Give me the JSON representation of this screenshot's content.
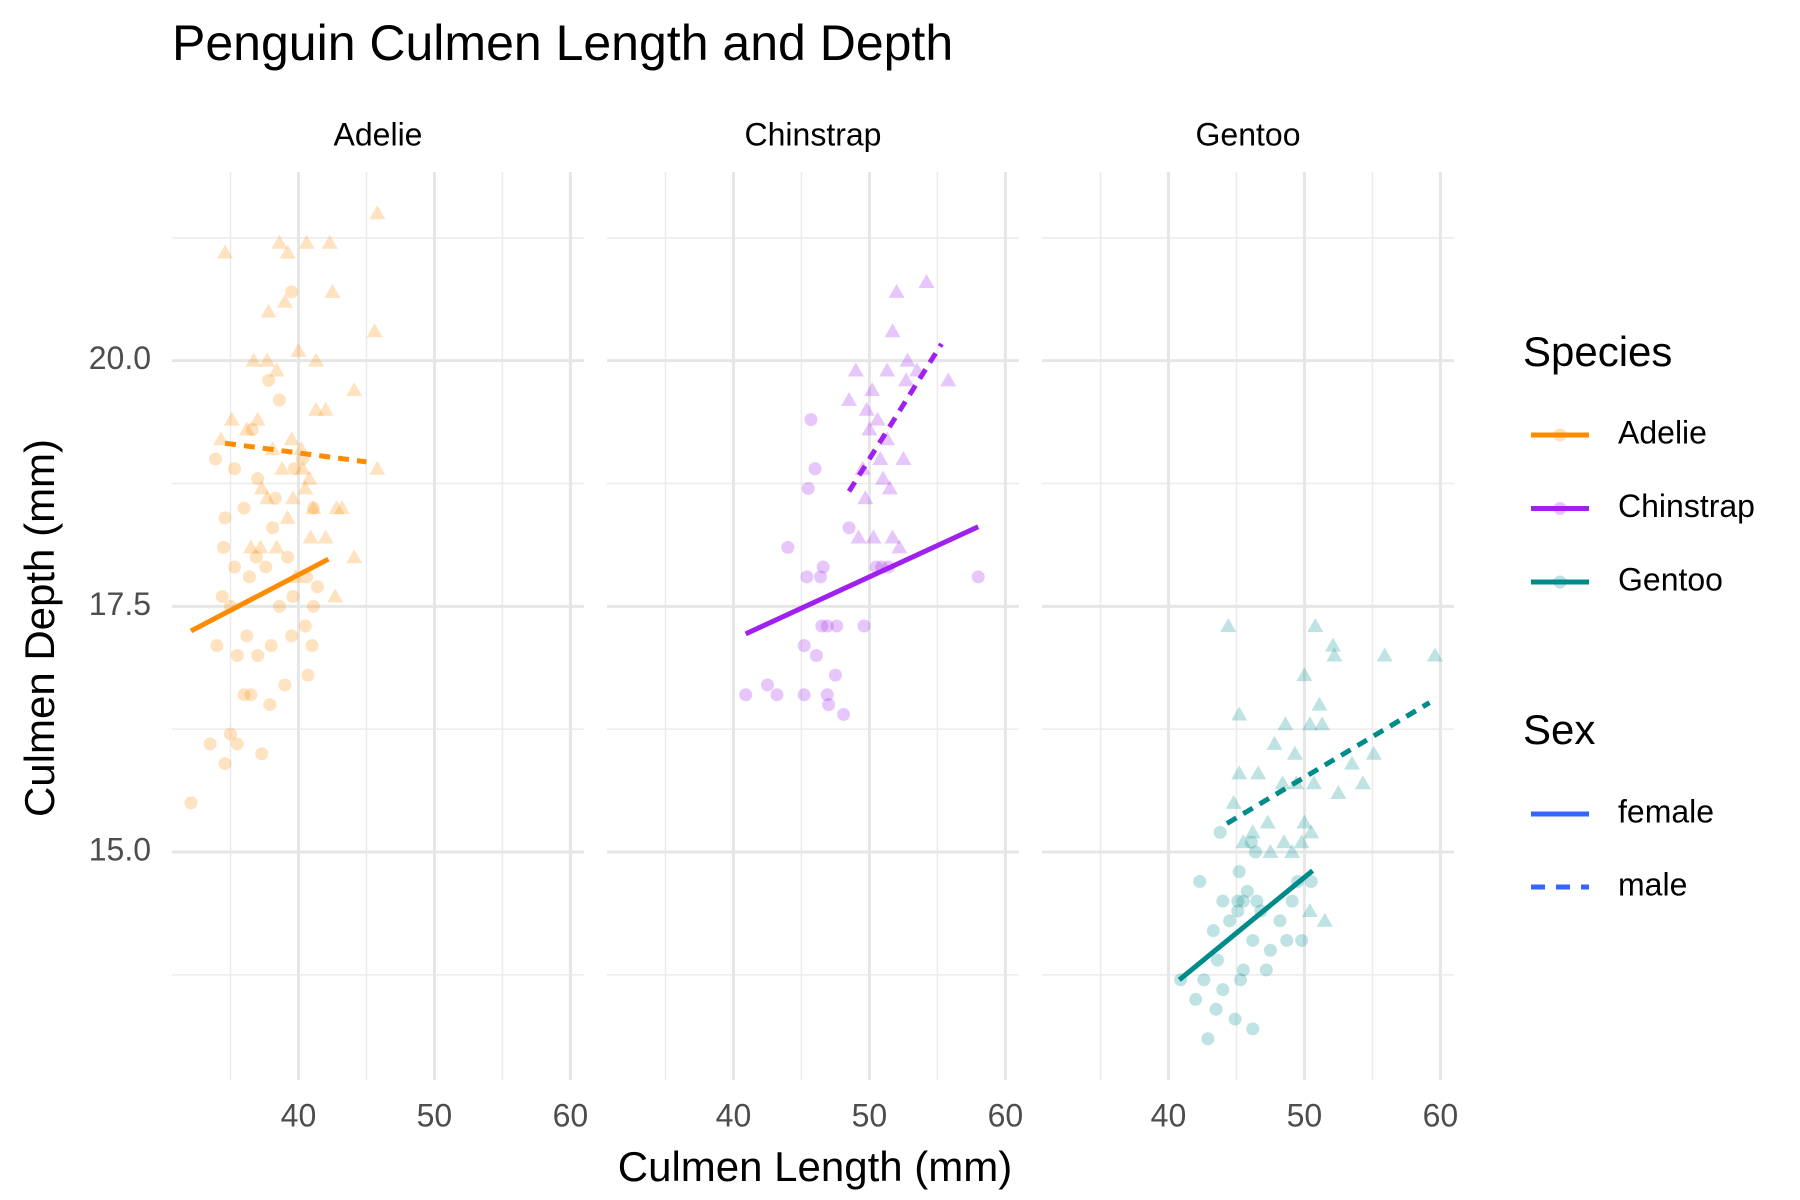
{
  "chart_data": {
    "type": "scatter",
    "title": "Penguin Culmen Length and Depth",
    "xlabel": "Culmen Length (mm)",
    "ylabel": "Culmen Depth (mm)",
    "xlim": [
      30.7,
      61.0
    ],
    "ylim": [
      12.68,
      21.92
    ],
    "xticks": [
      40,
      50,
      60
    ],
    "yticks": [
      {
        "value": 15,
        "label": "15.0"
      },
      {
        "value": 17.5,
        "label": "17.5"
      },
      {
        "value": 20,
        "label": "20.0"
      }
    ],
    "minor_xticks": [
      35,
      45,
      55
    ],
    "minor_yticks": [
      13.75,
      16.25,
      18.75,
      21.25
    ],
    "grid": true,
    "legend_species_title": "Species",
    "legend_sex_title": "Sex",
    "sex_legend_color": "#3366FF",
    "facets": [
      {
        "name": "Adelie",
        "color": "#FF8C00",
        "series": [
          {
            "name": "female",
            "marker": "circle",
            "linetype": "solid",
            "x": [
              32.1,
              33.5,
              34.6,
              35.0,
              35.5,
              37.3,
              36.0,
              36.5,
              37.9,
              39.0,
              40.7,
              34.0,
              35.5,
              36.2,
              37.0,
              38.0,
              39.5,
              40.5,
              41.0,
              34.4,
              35.0,
              36.4,
              37.6,
              38.6,
              39.6,
              41.1,
              34.5,
              35.3,
              36.9,
              38.1,
              39.2,
              40.6,
              41.4,
              34.6,
              36.0,
              37.0,
              38.3,
              39.7,
              35.3,
              33.9,
              36.6,
              39.5,
              38.6,
              37.8,
              40.3,
              41.1
            ],
            "y": [
              15.5,
              16.1,
              15.9,
              16.2,
              16.1,
              16.0,
              16.6,
              16.6,
              16.5,
              16.7,
              16.8,
              17.1,
              17.0,
              17.2,
              17.0,
              17.1,
              17.2,
              17.3,
              17.1,
              17.6,
              17.5,
              17.8,
              17.9,
              17.5,
              17.6,
              17.5,
              18.1,
              17.9,
              18.0,
              18.3,
              18.0,
              17.8,
              17.7,
              18.4,
              18.5,
              18.8,
              18.6,
              18.9,
              18.9,
              19.0,
              19.3,
              20.7,
              19.6,
              19.8,
              19.0,
              18.5
            ],
            "fit": {
              "x": [
                32.1,
                42.2
              ],
              "y": [
                17.25,
                17.98
              ]
            }
          },
          {
            "name": "male",
            "marker": "triangle",
            "linetype": "dashed",
            "x": [
              34.6,
              38.6,
              39.2,
              40.6,
              42.3,
              45.8,
              42.5,
              39.0,
              37.8,
              45.6,
              36.7,
              37.7,
              38.4,
              40.0,
              41.3,
              44.1,
              35.1,
              36.2,
              37.0,
              38.1,
              39.5,
              40.2,
              41.3,
              42.0,
              34.3,
              37.3,
              38.8,
              40.3,
              40.8,
              45.8,
              37.7,
              39.6,
              41.1,
              42.8,
              43.2,
              37.2,
              38.4,
              40.9,
              42.0,
              44.1,
              39.8,
              42.7,
              39.2,
              40.5,
              36.5
            ],
            "y": [
              21.1,
              21.2,
              21.1,
              21.2,
              21.2,
              21.5,
              20.7,
              20.6,
              20.5,
              20.3,
              20.0,
              20.0,
              19.9,
              20.1,
              20.0,
              19.7,
              19.4,
              19.3,
              19.4,
              19.1,
              19.2,
              19.1,
              19.5,
              19.5,
              19.2,
              18.7,
              18.9,
              18.9,
              18.8,
              18.9,
              18.6,
              18.6,
              18.5,
              18.5,
              18.5,
              18.1,
              18.1,
              18.2,
              18.2,
              18.0,
              17.8,
              17.6,
              18.4,
              18.7,
              18.1
            ],
            "fit": {
              "x": [
                34.6,
                45.0
              ],
              "y": [
                19.16,
                18.97
              ]
            }
          }
        ]
      },
      {
        "name": "Chinstrap",
        "color": "#A020F0",
        "series": [
          {
            "name": "female",
            "marker": "circle",
            "linetype": "solid",
            "x": [
              40.9,
              42.5,
              43.2,
              45.2,
              46.9,
              47.0,
              48.1,
              47.5,
              44.0,
              45.4,
              45.5,
              45.7,
              46.0,
              46.1,
              46.4,
              46.6,
              46.9,
              47.6,
              48.5,
              49.6,
              50.5,
              51.4,
              45.2,
              46.5,
              58.0,
              50.9
            ],
            "y": [
              16.6,
              16.7,
              16.6,
              16.6,
              16.6,
              16.5,
              16.4,
              16.8,
              18.1,
              17.8,
              18.7,
              19.4,
              18.9,
              17.0,
              17.8,
              17.9,
              17.3,
              17.3,
              18.3,
              17.3,
              17.9,
              17.9,
              17.1,
              17.3,
              17.8,
              17.9
            ],
            "fit": {
              "x": [
                40.9,
                58.0
              ],
              "y": [
                17.22,
                18.31
              ]
            }
          },
          {
            "name": "male",
            "marker": "triangle",
            "linetype": "dashed",
            "x": [
              54.2,
              52.0,
              51.7,
              49.0,
              49.8,
              50.2,
              51.3,
              52.7,
              53.5,
              55.8,
              50.0,
              51.0,
              51.5,
              50.6,
              49.2,
              49.7,
              50.3,
              51.7,
              52.2,
              51.3,
              49.5,
              48.5,
              52.8,
              50.8,
              52.5
            ],
            "y": [
              20.8,
              20.7,
              20.3,
              19.9,
              19.5,
              19.7,
              19.9,
              19.8,
              19.9,
              19.8,
              19.3,
              18.8,
              18.7,
              19.4,
              18.2,
              18.6,
              18.2,
              18.2,
              18.1,
              19.2,
              18.9,
              19.6,
              20.0,
              19.0,
              19.0
            ],
            "fit": {
              "x": [
                48.5,
                55.3
              ],
              "y": [
                18.67,
                20.17
              ]
            }
          }
        ]
      },
      {
        "name": "Gentoo",
        "color": "#008B8B",
        "series": [
          {
            "name": "female",
            "marker": "circle",
            "linetype": "solid",
            "x": [
              40.9,
              42.0,
              42.9,
              43.5,
              44.9,
              45.5,
              46.2,
              42.3,
              43.3,
              43.6,
              44.0,
              44.5,
              45.1,
              45.3,
              45.5,
              45.8,
              46.2,
              46.5,
              46.8,
              47.2,
              47.5,
              48.2,
              48.7,
              49.1,
              49.5,
              50.5,
              49.8,
              45.2,
              46.4,
              46.1,
              43.8,
              44.0,
              45.1,
              42.6
            ],
            "y": [
              13.7,
              13.5,
              13.1,
              13.4,
              13.3,
              13.8,
              13.2,
              14.7,
              14.2,
              13.9,
              14.5,
              14.3,
              14.5,
              13.7,
              14.5,
              14.6,
              14.1,
              14.5,
              14.4,
              13.8,
              14.0,
              14.3,
              14.1,
              14.5,
              14.7,
              14.7,
              14.1,
              14.8,
              15.0,
              15.1,
              15.2,
              13.6,
              14.4,
              13.7
            ],
            "fit": {
              "x": [
                40.8,
                50.6
              ],
              "y": [
                13.7,
                14.81
              ]
            }
          },
          {
            "name": "male",
            "marker": "triangle",
            "linetype": "dashed",
            "x": [
              44.4,
              50.8,
              52.1,
              55.9,
              59.6,
              52.2,
              50.0,
              45.2,
              47.8,
              48.6,
              49.3,
              50.4,
              51.1,
              51.3,
              53.5,
              54.3,
              55.1,
              45.2,
              46.6,
              48.4,
              49.4,
              50.7,
              52.5,
              45.5,
              46.2,
              47.3,
              48.5,
              49.8,
              50.0,
              50.5,
              51.5,
              50.4,
              47.5,
              49.1,
              44.8
            ],
            "y": [
              17.3,
              17.3,
              17.1,
              17.0,
              17.0,
              17.0,
              16.8,
              16.4,
              16.1,
              16.3,
              16.0,
              16.3,
              16.5,
              16.3,
              15.9,
              15.7,
              16.0,
              15.8,
              15.8,
              15.7,
              15.7,
              15.7,
              15.6,
              15.1,
              15.2,
              15.3,
              15.1,
              15.1,
              15.3,
              15.2,
              14.3,
              14.4,
              15.0,
              15.0,
              15.5
            ],
            "fit": {
              "x": [
                44.3,
                59.2
              ],
              "y": [
                15.29,
                16.52
              ]
            }
          }
        ]
      }
    ]
  }
}
